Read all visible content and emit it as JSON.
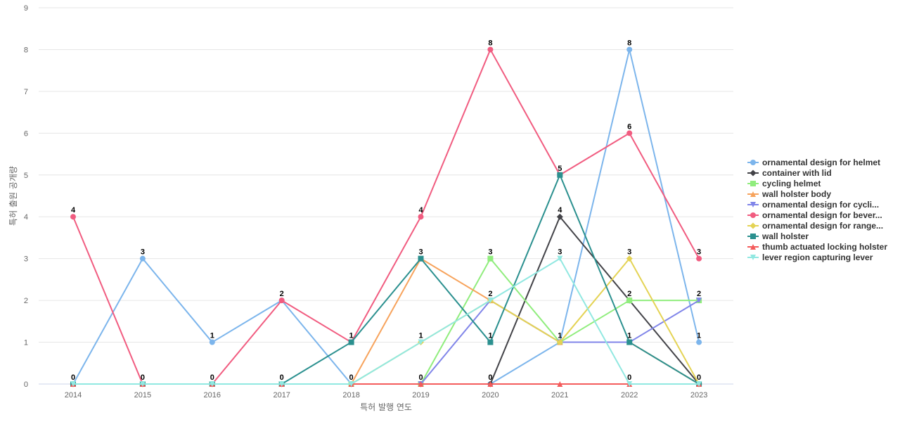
{
  "chart_data": {
    "type": "line",
    "title": "",
    "xlabel": "특허 발행 연도",
    "ylabel": "특허 출원 공개량",
    "ylim": [
      0,
      9
    ],
    "yticks": [
      0,
      1,
      2,
      3,
      4,
      5,
      6,
      7,
      8,
      9
    ],
    "categories": [
      "2014",
      "2015",
      "2016",
      "2017",
      "2018",
      "2019",
      "2020",
      "2021",
      "2022",
      "2023"
    ],
    "grid": true,
    "legend_position": "right",
    "series": [
      {
        "name": "ornamental design for helmet",
        "color": "#7cb5ec",
        "marker": "circle",
        "values": [
          0,
          3,
          1,
          2,
          0,
          0,
          0,
          1,
          8,
          1
        ]
      },
      {
        "name": "container with lid",
        "color": "#434348",
        "marker": "diamond",
        "values": [
          0,
          0,
          0,
          0,
          0,
          0,
          0,
          4,
          2,
          0
        ]
      },
      {
        "name": "cycling helmet",
        "color": "#90ed7d",
        "marker": "square",
        "values": [
          0,
          0,
          0,
          0,
          0,
          0,
          3,
          1,
          2,
          2
        ]
      },
      {
        "name": "wall holster body",
        "color": "#f7a35c",
        "marker": "triangle",
        "values": [
          0,
          0,
          0,
          0,
          0,
          3,
          2,
          1,
          1,
          0
        ]
      },
      {
        "name": "ornamental design for cycli...",
        "color": "#8085e9",
        "marker": "triangle-down",
        "values": [
          0,
          0,
          0,
          0,
          0,
          0,
          2,
          1,
          1,
          2
        ]
      },
      {
        "name": "ornamental design for bever...",
        "color": "#f15c80",
        "marker": "circle",
        "values": [
          4,
          0,
          0,
          2,
          1,
          4,
          8,
          5,
          6,
          3
        ]
      },
      {
        "name": "ornamental design for range...",
        "color": "#e4d354",
        "marker": "diamond",
        "values": [
          0,
          0,
          0,
          0,
          0,
          1,
          2,
          1,
          3,
          0
        ]
      },
      {
        "name": "wall holster",
        "color": "#2b908f",
        "marker": "square",
        "values": [
          0,
          0,
          0,
          0,
          1,
          3,
          1,
          5,
          1,
          0
        ]
      },
      {
        "name": "thumb actuated locking holster",
        "color": "#f45b5b",
        "marker": "triangle",
        "values": [
          0,
          0,
          0,
          0,
          0,
          0,
          0,
          0,
          0,
          0
        ]
      },
      {
        "name": "lever region capturing lever",
        "color": "#91e8e1",
        "marker": "triangle-down",
        "values": [
          0,
          0,
          0,
          0,
          0,
          1,
          2,
          3,
          0,
          0
        ]
      }
    ],
    "point_labels": [
      {
        "x": "2014",
        "y": 4,
        "text": "4"
      },
      {
        "x": "2014",
        "y": 0,
        "text": "0"
      },
      {
        "x": "2015",
        "y": 3,
        "text": "3"
      },
      {
        "x": "2015",
        "y": 0,
        "text": "0"
      },
      {
        "x": "2016",
        "y": 1,
        "text": "1"
      },
      {
        "x": "2016",
        "y": 0,
        "text": "0"
      },
      {
        "x": "2017",
        "y": 2,
        "text": "2"
      },
      {
        "x": "2017",
        "y": 0,
        "text": "0"
      },
      {
        "x": "2018",
        "y": 1,
        "text": "1"
      },
      {
        "x": "2018",
        "y": 0,
        "text": "0"
      },
      {
        "x": "2019",
        "y": 4,
        "text": "4"
      },
      {
        "x": "2019",
        "y": 3,
        "text": "3"
      },
      {
        "x": "2019",
        "y": 1,
        "text": "1"
      },
      {
        "x": "2019",
        "y": 0,
        "text": "0"
      },
      {
        "x": "2020",
        "y": 8,
        "text": "8"
      },
      {
        "x": "2020",
        "y": 3,
        "text": "3"
      },
      {
        "x": "2020",
        "y": 2,
        "text": "2"
      },
      {
        "x": "2020",
        "y": 1,
        "text": "1"
      },
      {
        "x": "2020",
        "y": 0,
        "text": "0"
      },
      {
        "x": "2021",
        "y": 5,
        "text": "5"
      },
      {
        "x": "2021",
        "y": 4,
        "text": "4"
      },
      {
        "x": "2021",
        "y": 3,
        "text": "3"
      },
      {
        "x": "2021",
        "y": 1,
        "text": "1"
      },
      {
        "x": "2022",
        "y": 8,
        "text": "8"
      },
      {
        "x": "2022",
        "y": 6,
        "text": "6"
      },
      {
        "x": "2022",
        "y": 3,
        "text": "3"
      },
      {
        "x": "2022",
        "y": 2,
        "text": "2"
      },
      {
        "x": "2022",
        "y": 1,
        "text": "1"
      },
      {
        "x": "2022",
        "y": 0,
        "text": "0"
      },
      {
        "x": "2023",
        "y": 3,
        "text": "3"
      },
      {
        "x": "2023",
        "y": 2,
        "text": "2"
      },
      {
        "x": "2023",
        "y": 1,
        "text": "1"
      },
      {
        "x": "2023",
        "y": 0,
        "text": "0"
      }
    ]
  }
}
